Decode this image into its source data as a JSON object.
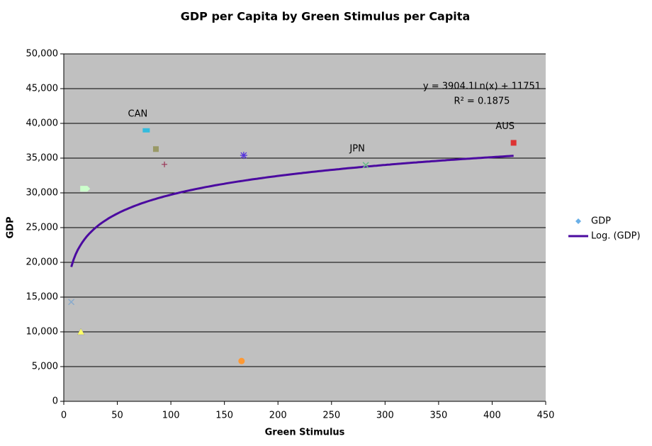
{
  "chart_data": {
    "type": "scatter",
    "title": "GDP per Capita by Green Stimulus per Capita",
    "x_label": "Green Stimulus",
    "y_label": "GDP",
    "xlim": [
      0,
      450
    ],
    "xticks": [
      0,
      50,
      100,
      150,
      200,
      250,
      300,
      350,
      400,
      450
    ],
    "ylim": [
      0,
      50000
    ],
    "yticks": [
      0,
      {
        "value": 5000,
        "label": "5,000"
      },
      {
        "value": 10000,
        "label": "10,000"
      },
      {
        "value": 15000,
        "label": "15,000"
      },
      {
        "value": 20000,
        "label": "20,000"
      },
      {
        "value": 25000,
        "label": "25,000"
      },
      {
        "value": 30000,
        "label": "30,000"
      },
      {
        "value": 35000,
        "label": "35,000"
      },
      {
        "value": 40000,
        "label": "40,000"
      },
      {
        "value": 45000,
        "label": "45,000"
      },
      {
        "value": 50000,
        "label": "50,000"
      }
    ],
    "grid": true,
    "series": [
      {
        "name": "GDP",
        "color": "#6ab0e8",
        "x": [
          77,
          86,
          94,
          168,
          282,
          420,
          20,
          7,
          16,
          166
        ],
        "values": [
          39000,
          36300,
          34100,
          35400,
          34000,
          37200,
          30600,
          14300,
          10000,
          5800
        ],
        "point_labels": [
          "CAN",
          null,
          null,
          null,
          "JPN",
          "AUS",
          null,
          null,
          null,
          null
        ],
        "point_colors": [
          "#33bbdd",
          "#999966",
          "#993355",
          "#5533dd",
          "#66bb88",
          "#dd3333",
          "#ccffcc",
          "#88aacc",
          "#ffff66",
          "#ff9933"
        ],
        "markers": [
          "rect",
          "square",
          "plus",
          "star",
          "cross",
          "square",
          "arrow",
          "cross",
          "triangle",
          "circle"
        ]
      }
    ],
    "trendline": {
      "name": "Log. (GDP)",
      "color": "#4b0aa0",
      "coefficients": [
        3904.1,
        11751
      ],
      "x": [
        7,
        420
      ],
      "equation": "y = 3904.1Ln(x) + 11751",
      "r2": "R² = 0.1875"
    },
    "legend": "right"
  }
}
